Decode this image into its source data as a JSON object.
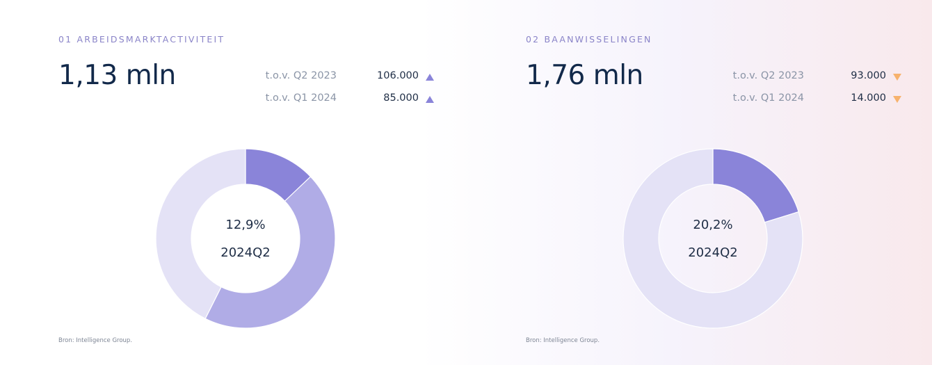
{
  "colors": {
    "dark": "#8a84d9",
    "medium": "#b0ace6",
    "light": "#e4e2f6",
    "up": "#8a84d9",
    "down": "#f7b26d"
  },
  "chart_data": [
    {
      "type": "pie",
      "variant": "donut",
      "title": "01 ARBEIDSMARKTACTIVITEIT",
      "headline": "1,13 mln",
      "comparisons": [
        {
          "label": "t.o.v. Q2 2023",
          "value": "106.000",
          "direction": "up"
        },
        {
          "label": "t.o.v. Q1 2024",
          "value": "85.000",
          "direction": "up"
        }
      ],
      "slices": [
        {
          "value": 12.9,
          "color": "#8a84d9"
        },
        {
          "value": 44.5,
          "color": "#b0ace6"
        },
        {
          "value": 42.6,
          "color": "#e4e2f6"
        }
      ],
      "center_value": "12,9%",
      "center_label": "2024Q2",
      "source": "Bron: Intelligence Group."
    },
    {
      "type": "pie",
      "variant": "donut",
      "title": "02 BAANWISSELINGEN",
      "headline": "1,76 mln",
      "comparisons": [
        {
          "label": "t.o.v. Q2 2023",
          "value": "93.000",
          "direction": "down"
        },
        {
          "label": "t.o.v. Q1 2024",
          "value": "14.000",
          "direction": "down"
        }
      ],
      "slices": [
        {
          "value": 20.2,
          "color": "#8a84d9"
        },
        {
          "value": 79.8,
          "color": "#e4e2f6"
        }
      ],
      "center_value": "20,2%",
      "center_label": "2024Q2",
      "source": "Bron: Intelligence Group."
    }
  ]
}
